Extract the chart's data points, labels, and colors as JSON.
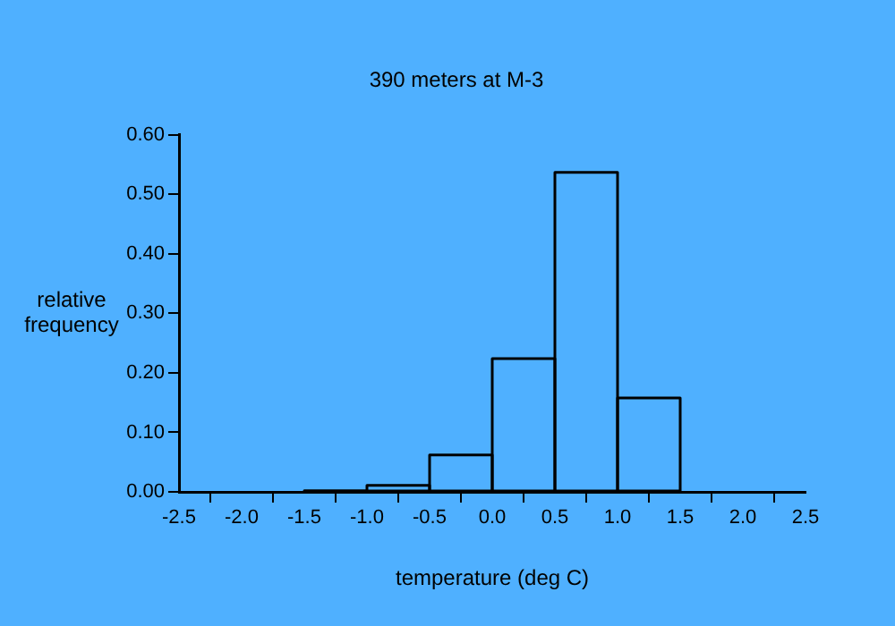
{
  "chart_data": {
    "type": "histogram",
    "title": "390 meters at M-3",
    "xlabel": "temperature (deg C)",
    "ylabel": "relative frequency",
    "bins": [
      -1.5,
      -1.0,
      -0.5,
      0.0,
      0.5,
      1.0,
      1.5
    ],
    "values": [
      0.002,
      0.011,
      0.062,
      0.224,
      0.537,
      0.158
    ],
    "color": "#000000",
    "xlim": [
      -2.5,
      2.5
    ],
    "xticks": [
      {
        "value": -2.5,
        "label": "-2.5"
      },
      {
        "value": -2,
        "label": "-2.0"
      },
      {
        "value": -1.5,
        "label": "-1.5"
      },
      {
        "value": -1,
        "label": "-1.0"
      },
      {
        "value": -0.5,
        "label": "-0.5"
      },
      {
        "value": 0,
        "label": "0.0"
      },
      {
        "value": 0.5,
        "label": "0.5"
      },
      {
        "value": 1,
        "label": "1.0"
      },
      {
        "value": 1.5,
        "label": "1.5"
      },
      {
        "value": 2,
        "label": "2.0"
      },
      {
        "value": 2.5,
        "label": "2.5"
      }
    ],
    "ylim": [
      0,
      0.6
    ],
    "yticks": [
      {
        "value": 0,
        "label": "0.00"
      },
      {
        "value": 0.1,
        "label": "0.10"
      },
      {
        "value": 0.2,
        "label": "0.20"
      },
      {
        "value": 0.3,
        "label": "0.30"
      },
      {
        "value": 0.4,
        "label": "0.40"
      },
      {
        "value": 0.5,
        "label": "0.50"
      },
      {
        "value": 0.6,
        "label": "0.60"
      }
    ],
    "grid": false,
    "legend": false
  }
}
